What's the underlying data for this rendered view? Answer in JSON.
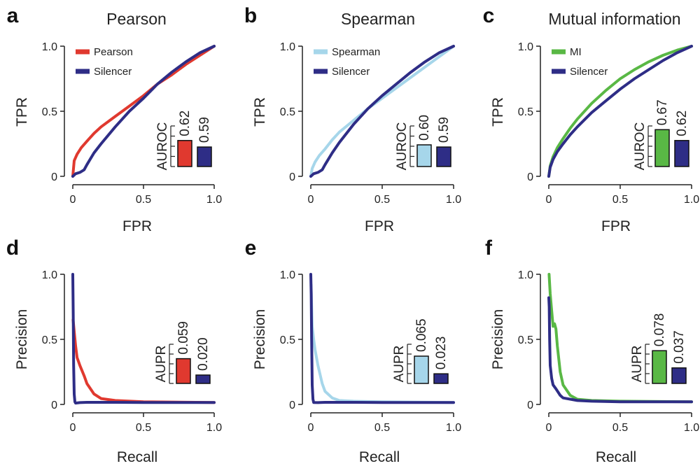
{
  "colors": {
    "silencer": "#2e2d86",
    "pearson": "#e0392f",
    "spearman": "#a6d6ea",
    "mi": "#59b845"
  },
  "chart_data": [
    {
      "id": "a",
      "panel_label": "a",
      "type": "line",
      "kind": "roc",
      "title": "Pearson",
      "xlabel": "FPR",
      "ylabel": "TPR",
      "xlim": [
        0,
        1
      ],
      "ylim": [
        0,
        1
      ],
      "xticks": [
        "0",
        "0.5",
        "1.0"
      ],
      "yticks": [
        "0",
        "0.5",
        "1.0"
      ],
      "legend": "top-left",
      "series": [
        {
          "name": "Pearson",
          "color_key": "pearson",
          "x": [
            0,
            0.01,
            0.03,
            0.06,
            0.1,
            0.15,
            0.2,
            0.3,
            0.4,
            0.5,
            0.6,
            0.7,
            0.8,
            0.9,
            1.0
          ],
          "y": [
            0,
            0.12,
            0.17,
            0.22,
            0.27,
            0.33,
            0.38,
            0.46,
            0.54,
            0.62,
            0.71,
            0.78,
            0.86,
            0.93,
            1.0
          ]
        },
        {
          "name": "Silencer",
          "color_key": "silencer",
          "x": [
            0,
            0.02,
            0.05,
            0.08,
            0.1,
            0.15,
            0.2,
            0.3,
            0.4,
            0.5,
            0.6,
            0.7,
            0.8,
            0.9,
            1.0
          ],
          "y": [
            0,
            0.02,
            0.03,
            0.05,
            0.09,
            0.18,
            0.25,
            0.38,
            0.5,
            0.6,
            0.71,
            0.8,
            0.88,
            0.95,
            1.0
          ]
        }
      ],
      "inset": {
        "label": "AUROC",
        "values": [
          "0.62",
          "0.59"
        ],
        "bars": [
          0.62,
          0.59
        ],
        "base": 0.5,
        "top": 0.7
      }
    },
    {
      "id": "b",
      "panel_label": "b",
      "type": "line",
      "kind": "roc",
      "title": "Spearman",
      "xlabel": "FPR",
      "ylabel": "TPR",
      "xlim": [
        0,
        1
      ],
      "ylim": [
        0,
        1
      ],
      "xticks": [
        "0",
        "0.5",
        "1.0"
      ],
      "yticks": [
        "0",
        "0.5",
        "1.0"
      ],
      "legend": "top-left",
      "series": [
        {
          "name": "Spearman",
          "color_key": "spearman",
          "x": [
            0,
            0.01,
            0.03,
            0.06,
            0.1,
            0.15,
            0.2,
            0.3,
            0.4,
            0.5,
            0.6,
            0.7,
            0.8,
            0.9,
            1.0
          ],
          "y": [
            0,
            0.06,
            0.11,
            0.16,
            0.21,
            0.28,
            0.34,
            0.43,
            0.52,
            0.6,
            0.68,
            0.76,
            0.84,
            0.92,
            1.0
          ]
        },
        {
          "name": "Silencer",
          "color_key": "silencer",
          "x": [
            0,
            0.02,
            0.05,
            0.08,
            0.1,
            0.15,
            0.2,
            0.3,
            0.4,
            0.5,
            0.6,
            0.7,
            0.8,
            0.9,
            1.0
          ],
          "y": [
            0,
            0.02,
            0.03,
            0.05,
            0.09,
            0.18,
            0.26,
            0.4,
            0.52,
            0.62,
            0.71,
            0.8,
            0.88,
            0.95,
            1.0
          ]
        }
      ],
      "inset": {
        "label": "AUROC",
        "values": [
          "0.60",
          "0.59"
        ],
        "bars": [
          0.6,
          0.59
        ],
        "base": 0.5,
        "top": 0.7
      }
    },
    {
      "id": "c",
      "panel_label": "c",
      "type": "line",
      "kind": "roc",
      "title": "Mutual information",
      "xlabel": "FPR",
      "ylabel": "TPR",
      "xlim": [
        0,
        1
      ],
      "ylim": [
        0,
        1
      ],
      "xticks": [
        "0",
        "0.5",
        "1.0"
      ],
      "yticks": [
        "0",
        "0.5",
        "1.0"
      ],
      "legend": "top-left",
      "series": [
        {
          "name": "MI",
          "color_key": "mi",
          "x": [
            0,
            0.01,
            0.03,
            0.06,
            0.1,
            0.15,
            0.2,
            0.3,
            0.4,
            0.5,
            0.6,
            0.7,
            0.8,
            0.9,
            1.0
          ],
          "y": [
            0,
            0.08,
            0.15,
            0.22,
            0.29,
            0.37,
            0.44,
            0.56,
            0.66,
            0.75,
            0.82,
            0.88,
            0.93,
            0.97,
            1.0
          ]
        },
        {
          "name": "Silencer",
          "color_key": "silencer",
          "x": [
            0,
            0.01,
            0.03,
            0.06,
            0.1,
            0.15,
            0.2,
            0.3,
            0.4,
            0.5,
            0.6,
            0.7,
            0.8,
            0.9,
            1.0
          ],
          "y": [
            0,
            0.07,
            0.13,
            0.19,
            0.25,
            0.32,
            0.38,
            0.49,
            0.58,
            0.67,
            0.75,
            0.82,
            0.89,
            0.95,
            1.0
          ]
        }
      ],
      "inset": {
        "label": "AUROC",
        "values": [
          "0.67",
          "0.62"
        ],
        "bars": [
          0.67,
          0.62
        ],
        "base": 0.5,
        "top": 0.7
      }
    },
    {
      "id": "d",
      "panel_label": "d",
      "type": "line",
      "kind": "pr",
      "title": "",
      "xlabel": "Recall",
      "ylabel": "Precision",
      "xlim": [
        0,
        1
      ],
      "ylim": [
        0,
        1
      ],
      "xticks": [
        "0",
        "0.5",
        "1.0"
      ],
      "yticks": [
        "0",
        "0.5",
        "1.0"
      ],
      "series": [
        {
          "name": "Pearson",
          "color_key": "pearson",
          "x": [
            0.002,
            0.005,
            0.01,
            0.02,
            0.03,
            0.05,
            0.08,
            0.1,
            0.15,
            0.2,
            0.3,
            0.5,
            1.0
          ],
          "y": [
            0.65,
            0.62,
            0.56,
            0.45,
            0.36,
            0.3,
            0.22,
            0.16,
            0.08,
            0.045,
            0.03,
            0.02,
            0.015
          ]
        },
        {
          "name": "Silencer",
          "color_key": "silencer",
          "x": [
            0,
            0.003,
            0.006,
            0.01,
            0.015,
            0.02,
            0.05,
            0.1,
            0.3,
            0.5,
            1.0
          ],
          "y": [
            1.0,
            0.7,
            0.3,
            0.08,
            0.02,
            0.01,
            0.014,
            0.016,
            0.016,
            0.015,
            0.015
          ]
        }
      ],
      "inset": {
        "label": "AUPR",
        "values": [
          "0.059",
          "0.020"
        ],
        "bars": [
          0.059,
          0.02
        ],
        "base": 0,
        "top": 0.1
      }
    },
    {
      "id": "e",
      "panel_label": "e",
      "type": "line",
      "kind": "pr",
      "title": "",
      "xlabel": "Recall",
      "ylabel": "Precision",
      "xlim": [
        0,
        1
      ],
      "ylim": [
        0,
        1
      ],
      "xticks": [
        "0",
        "0.5",
        "1.0"
      ],
      "yticks": [
        "0",
        "0.5",
        "1.0"
      ],
      "series": [
        {
          "name": "Spearman",
          "color_key": "spearman",
          "x": [
            0.002,
            0.005,
            0.01,
            0.02,
            0.03,
            0.05,
            0.08,
            0.1,
            0.15,
            0.2,
            0.3,
            0.5,
            1.0
          ],
          "y": [
            0.92,
            0.8,
            0.6,
            0.5,
            0.42,
            0.3,
            0.16,
            0.1,
            0.05,
            0.03,
            0.025,
            0.02,
            0.015
          ]
        },
        {
          "name": "Silencer",
          "color_key": "silencer",
          "x": [
            0,
            0.003,
            0.006,
            0.01,
            0.015,
            0.02,
            0.05,
            0.1,
            0.3,
            0.5,
            1.0
          ],
          "y": [
            1.0,
            0.85,
            0.5,
            0.15,
            0.04,
            0.015,
            0.014,
            0.016,
            0.016,
            0.015,
            0.015
          ]
        }
      ],
      "inset": {
        "label": "AUPR",
        "values": [
          "0.065",
          "0.023"
        ],
        "bars": [
          0.065,
          0.023
        ],
        "base": 0,
        "top": 0.1
      }
    },
    {
      "id": "f",
      "panel_label": "f",
      "type": "line",
      "kind": "pr",
      "title": "",
      "xlabel": "Recall",
      "ylabel": "Precision",
      "xlim": [
        0,
        1
      ],
      "ylim": [
        0,
        1
      ],
      "xticks": [
        "0",
        "0.5",
        "1.0"
      ],
      "yticks": [
        "0",
        "0.5",
        "1.0"
      ],
      "series": [
        {
          "name": "MI",
          "color_key": "mi",
          "x": [
            0.002,
            0.01,
            0.02,
            0.03,
            0.04,
            0.05,
            0.06,
            0.08,
            0.1,
            0.15,
            0.2,
            0.3,
            0.5,
            1.0
          ],
          "y": [
            1.0,
            0.85,
            0.72,
            0.6,
            0.62,
            0.58,
            0.45,
            0.25,
            0.15,
            0.07,
            0.04,
            0.03,
            0.025,
            0.02
          ]
        },
        {
          "name": "Silencer",
          "color_key": "silencer",
          "x": [
            0,
            0.003,
            0.006,
            0.01,
            0.02,
            0.03,
            0.05,
            0.08,
            0.1,
            0.2,
            0.3,
            0.5,
            1.0
          ],
          "y": [
            0.82,
            0.75,
            0.5,
            0.3,
            0.2,
            0.15,
            0.12,
            0.07,
            0.05,
            0.03,
            0.025,
            0.02,
            0.02
          ]
        }
      ],
      "inset": {
        "label": "AUPR",
        "values": [
          "0.078",
          "0.037"
        ],
        "bars": [
          0.078,
          0.037
        ],
        "base": 0,
        "top": 0.1
      }
    }
  ]
}
